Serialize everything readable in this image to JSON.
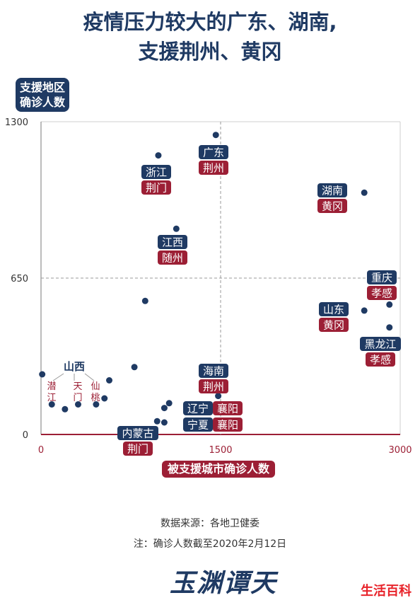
{
  "title_line1": "疫情压力较大的广东、湖南,",
  "title_line2": "支援荆州、黄冈",
  "ylabel_line1": "支援地区",
  "ylabel_line2": "确诊人数",
  "xlabel": "被支援城市确诊人数",
  "source": "数据来源：各地卫健委",
  "note": "注：确诊人数截至2020年2月12日",
  "logo": "玉渊谭天",
  "watermark": "生活百科",
  "colors": {
    "navy": "#1f3a63",
    "red": "#9c1f35",
    "axis_x": "#9c1f35",
    "grid": "#999999"
  },
  "chart_data": {
    "type": "scatter",
    "xlim": [
      0,
      3000
    ],
    "ylim": [
      0,
      1300
    ],
    "x_ticks": [
      "0",
      "1500",
      "3000"
    ],
    "y_ticks": [
      "0",
      "650",
      "1300"
    ],
    "reference_lines": {
      "x": 1500,
      "y": 650
    },
    "points": [
      {
        "from": "广东",
        "to": "荆州",
        "x": 1460,
        "y": 1245
      },
      {
        "from": "浙江",
        "to": "荆门",
        "x": 980,
        "y": 1160
      },
      {
        "from": "湖南",
        "to": "黄冈",
        "x": 2700,
        "y": 1005
      },
      {
        "from": "江西",
        "to": "随州",
        "x": 1130,
        "y": 855
      },
      {
        "from": "重庆",
        "to": "孝感",
        "x": 2910,
        "y": 540
      },
      {
        "from": "山东",
        "to": "黄冈",
        "x": 2700,
        "y": 515
      },
      {
        "from": "黑龙江",
        "to": "孝感",
        "x": 2910,
        "y": 445
      },
      {
        "from": "海南",
        "to": "荆州",
        "x": 1480,
        "y": 160
      },
      {
        "from": "辽宁",
        "to": "襄阳",
        "x": 1030,
        "y": 110
      },
      {
        "from": "宁夏",
        "to": "襄阳",
        "x": 1030,
        "y": 50
      },
      {
        "from": "内蒙古",
        "to": "荆门",
        "x": 970,
        "y": 55
      },
      {
        "from": "山西",
        "to": "潜江",
        "x": 90,
        "y": 125
      },
      {
        "from": "山西",
        "to": "天门",
        "x": 310,
        "y": 125
      },
      {
        "from": "山西",
        "to": "仙桃",
        "x": 460,
        "y": 125
      },
      {
        "x": 10,
        "y": 250
      },
      {
        "x": 200,
        "y": 105
      },
      {
        "x": 570,
        "y": 225
      },
      {
        "x": 530,
        "y": 150
      },
      {
        "x": 780,
        "y": 280
      },
      {
        "x": 870,
        "y": 555
      },
      {
        "x": 1070,
        "y": 130
      }
    ],
    "labels": [
      {
        "from": "广东",
        "to": "荆州"
      },
      {
        "from": "浙江",
        "to": "荆门"
      },
      {
        "from": "湖南",
        "to": "黄冈"
      },
      {
        "from": "江西",
        "to": "随州"
      },
      {
        "from": "重庆",
        "to": "孝感"
      },
      {
        "from": "山东",
        "to": "黄冈"
      },
      {
        "from": "黑龙江",
        "to": "孝感"
      },
      {
        "from": "海南",
        "to": "荆州"
      },
      {
        "from": "辽宁",
        "to": "襄阳"
      },
      {
        "from": "宁夏",
        "to": "襄阳"
      },
      {
        "from": "内蒙古",
        "to": "荆门"
      }
    ],
    "shanxi_group": {
      "from": "山西",
      "targets": [
        "潜江",
        "天门",
        "仙桃"
      ]
    }
  }
}
